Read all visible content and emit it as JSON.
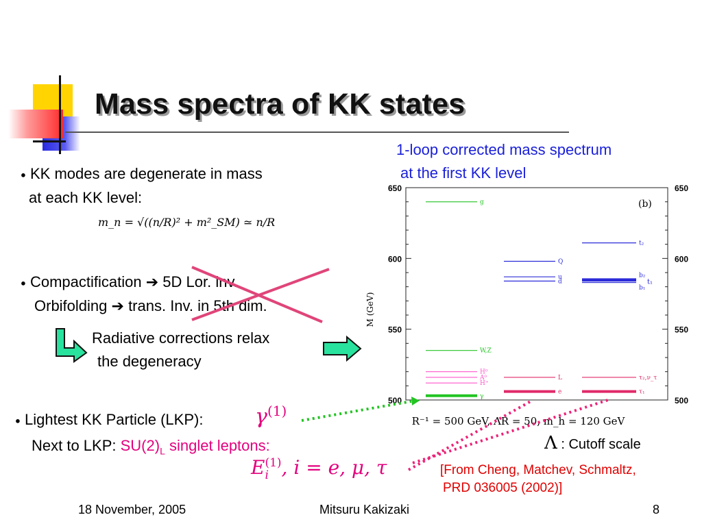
{
  "title": "Mass spectra of KK states",
  "right_caption": {
    "line1": "1-loop corrected mass spectrum",
    "line2": "at the first KK level"
  },
  "bullet1": {
    "line1": "KK modes are degenerate in mass",
    "line2": "at each KK level:",
    "formula": "m_n = √((n/R)² + m²_SM) ≃ n/R"
  },
  "bullet2": {
    "line1_a": "Compactification ",
    "arrow": "➔",
    "line1_b": " 5D Lor. inv.",
    "line2_a": "Orbifolding ",
    "line2_b": " trans. Inv. in 5th dim."
  },
  "relax": {
    "line1": "Radiative corrections relax",
    "line2": "the degeneracy"
  },
  "lkp": {
    "line1": "Lightest KK Particle (LKP):",
    "symbol": "γ",
    "superscript": "(1)",
    "line2_prefix": "Next to LKP: ",
    "su2": "SU(2)",
    "su2_sub": "L",
    "singlet": " singlet leptons:",
    "ei_base": "E",
    "ei_sup": "(1)",
    "ei_sub": "i",
    "ei_rest": ",  i = e, μ, τ"
  },
  "cutoff": {
    "symbol": "Λ",
    "label": " : Cutoff scale"
  },
  "reference": {
    "line1": "[From Cheng, Matchev, Schmaltz,",
    "line2": "PRD 036005 (2002)]"
  },
  "footer": {
    "date": "18 November, 2005",
    "author": "Mitsuru Kakizaki",
    "page": "8"
  },
  "chart_data": {
    "type": "spectrum",
    "ylabel": "M (GeV)",
    "yticks": [
      500,
      550,
      600,
      650
    ],
    "ylim": [
      500,
      650
    ],
    "panel_label": "(b)",
    "xlabel": "R⁻¹ = 500 GeV,  ΛR = 50,  m_h = 120 GeV",
    "columns": [
      {
        "levels": [
          {
            "label": "g",
            "mass": 640,
            "color": "#23c423",
            "bold": false
          },
          {
            "label": "W,Z",
            "mass": 535,
            "color": "#23c423",
            "bold": false
          },
          {
            "label": "H⁰",
            "mass": 520,
            "color": "#ff55cc",
            "bold": false
          },
          {
            "label": "A⁰",
            "mass": 516,
            "color": "#ff55cc",
            "bold": false
          },
          {
            "label": "H⁺",
            "mass": 512,
            "color": "#ff55cc",
            "bold": false
          },
          {
            "label": "γ",
            "mass": 503,
            "color": "#23c423",
            "bold": true
          }
        ]
      },
      {
        "levels": [
          {
            "label": "Q",
            "mass": 598,
            "color": "#2b2bd9",
            "bold": false
          },
          {
            "label": "u",
            "mass": 587,
            "color": "#2b2bd9",
            "bold": false
          },
          {
            "label": "d",
            "mass": 584,
            "color": "#2b2bd9",
            "bold": false
          },
          {
            "label": "L",
            "mass": 516,
            "color": "#e02a6a",
            "bold": false
          },
          {
            "label": "e",
            "mass": 506,
            "color": "#e02a6a",
            "bold": true
          }
        ]
      },
      {
        "levels": [
          {
            "label": "t₂",
            "mass": 611,
            "color": "#2b2bd9",
            "bold": false
          },
          {
            "label": "b₂",
            "mass": 585,
            "color": "#2b2bd9",
            "bold": true
          },
          {
            "label": "t₁",
            "mass": 584,
            "color": "#2b2bd9",
            "bold": false
          },
          {
            "label": "b₁",
            "mass": 583,
            "color": "#2b2bd9",
            "bold": false
          },
          {
            "label": "τ₂,ν_τ",
            "mass": 516,
            "color": "#e02a6a",
            "bold": false
          },
          {
            "label": "τ₁",
            "mass": 506,
            "color": "#e02a6a",
            "bold": true
          }
        ]
      }
    ]
  }
}
